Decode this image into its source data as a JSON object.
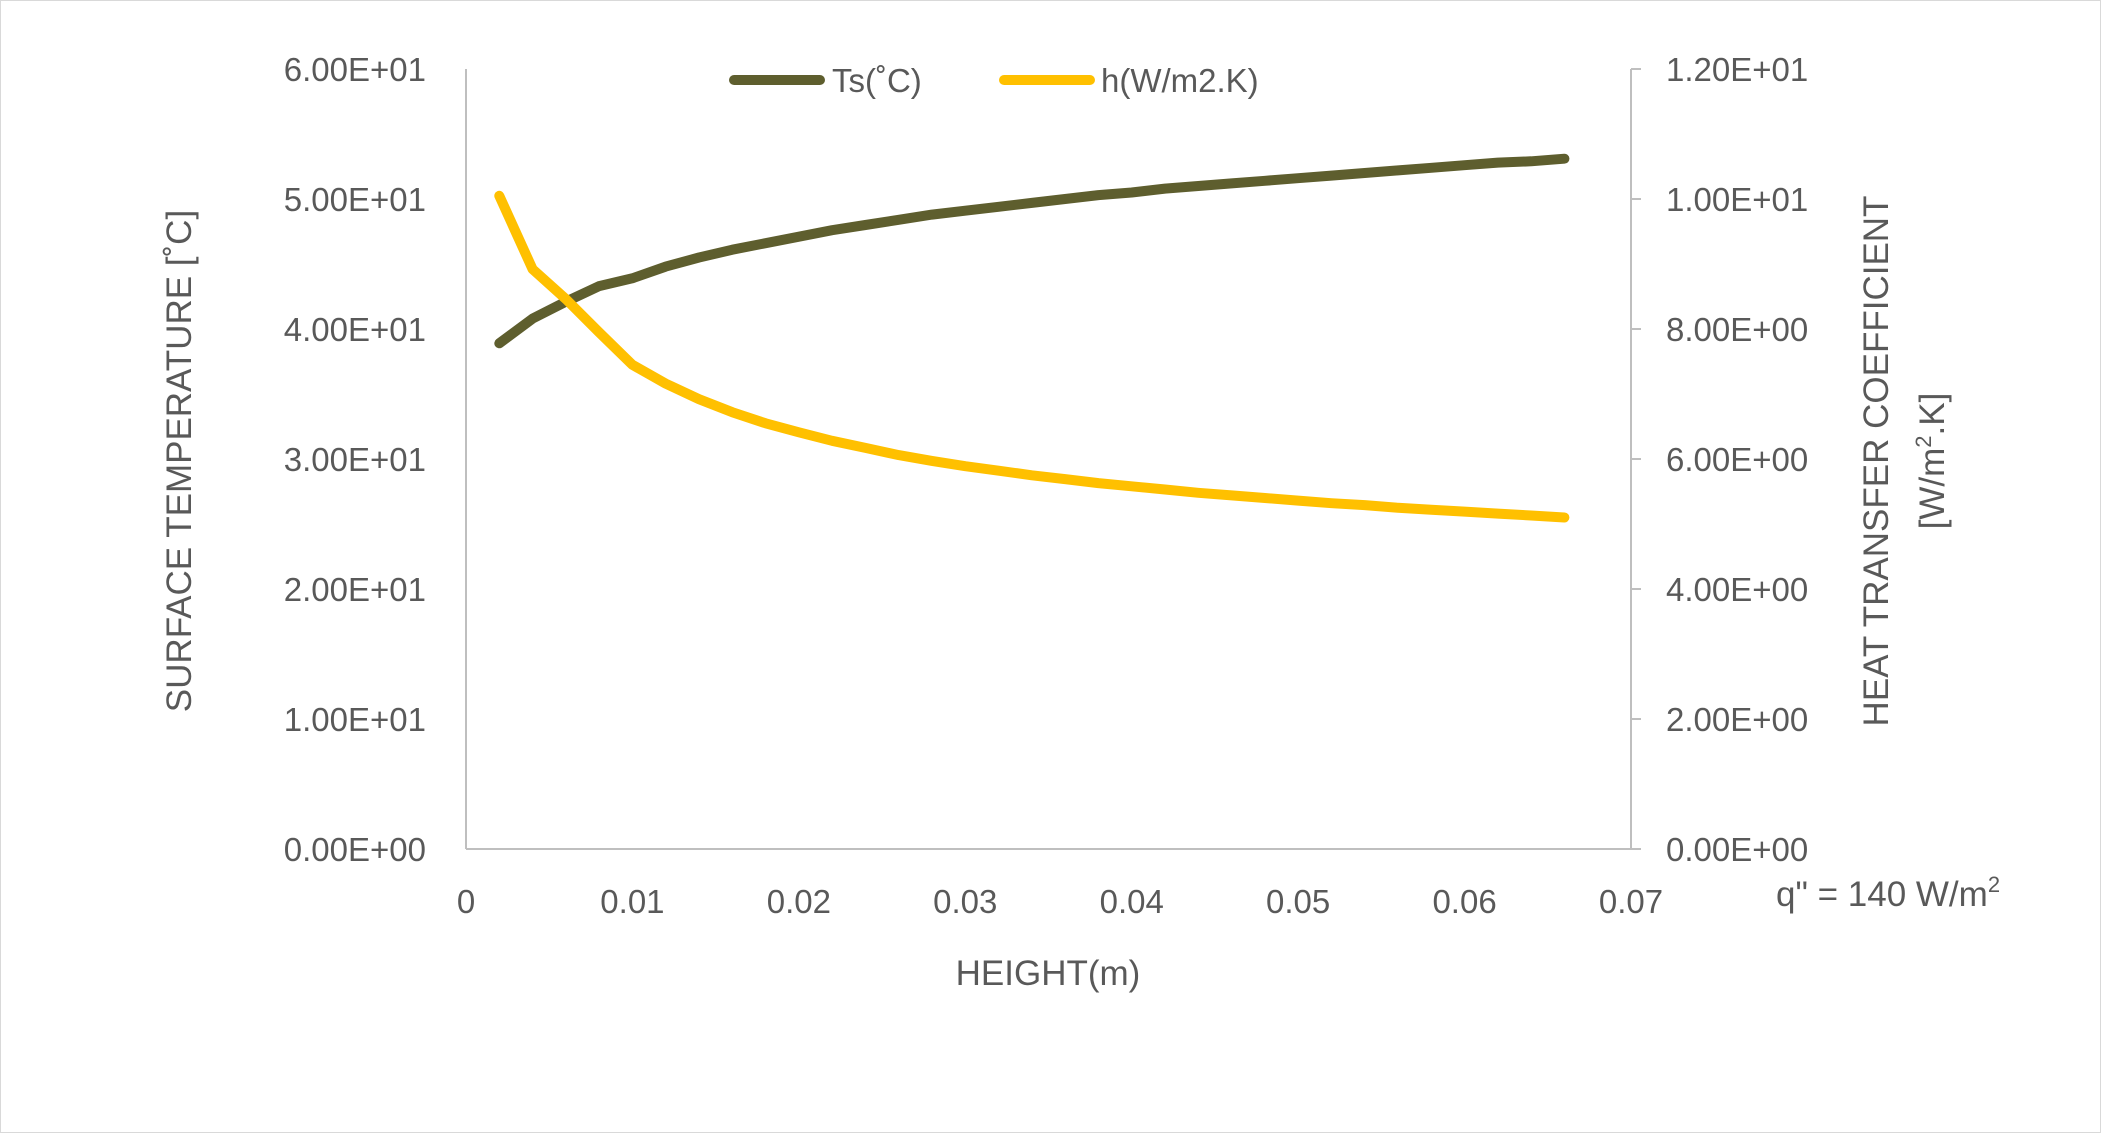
{
  "chart_data": {
    "type": "line",
    "xlabel": "HEIGHT(m)",
    "ylabel_left": "SURFACE TEMPERATURE [˚C]",
    "ylabel_right_line1": "HEAT TRANSFER COEFFICIENT",
    "ylabel_right_line2_parts": [
      "[W/m",
      "2",
      ".K]"
    ],
    "annotation_parts": [
      "q\" = 140 W/m",
      "2"
    ],
    "xlim": [
      0,
      0.07
    ],
    "ylim_left": [
      0,
      60
    ],
    "ylim_right": [
      0,
      12
    ],
    "x_ticks": [
      0,
      0.01,
      0.02,
      0.03,
      0.04,
      0.05,
      0.06,
      0.07
    ],
    "x_tick_labels": [
      "0",
      "0.01",
      "0.02",
      "0.03",
      "0.04",
      "0.05",
      "0.06",
      "0.07"
    ],
    "y_left_ticks": [
      0,
      10,
      20,
      30,
      40,
      50,
      60
    ],
    "y_left_tick_labels": [
      "0.00E+00",
      "1.00E+01",
      "2.00E+01",
      "3.00E+01",
      "4.00E+01",
      "5.00E+01",
      "6.00E+01"
    ],
    "y_right_ticks": [
      0,
      2,
      4,
      6,
      8,
      10,
      12
    ],
    "y_right_tick_labels": [
      "0.00E+00",
      "2.00E+00",
      "4.00E+00",
      "6.00E+00",
      "8.00E+00",
      "1.00E+01",
      "1.20E+01"
    ],
    "legend_position": "top-center",
    "grid": false,
    "series": [
      {
        "name": "Ts(˚C)",
        "axis": "left",
        "color": "#5e5e2e",
        "x": [
          0.002,
          0.004,
          0.006,
          0.008,
          0.01,
          0.012,
          0.014,
          0.016,
          0.018,
          0.02,
          0.022,
          0.024,
          0.026,
          0.028,
          0.03,
          0.032,
          0.034,
          0.036,
          0.038,
          0.04,
          0.042,
          0.044,
          0.046,
          0.048,
          0.05,
          0.052,
          0.054,
          0.056,
          0.058,
          0.06,
          0.062,
          0.064,
          0.066
        ],
        "values": [
          38.9,
          40.8,
          42.1,
          43.3,
          43.9,
          44.8,
          45.5,
          46.1,
          46.6,
          47.1,
          47.6,
          48.0,
          48.4,
          48.8,
          49.1,
          49.4,
          49.7,
          50.0,
          50.3,
          50.5,
          50.8,
          51.0,
          51.2,
          51.4,
          51.6,
          51.8,
          52.0,
          52.2,
          52.4,
          52.6,
          52.8,
          52.9,
          53.1
        ]
      },
      {
        "name": "h(W/m2.K)",
        "axis": "right",
        "color": "#ffc000",
        "x": [
          0.002,
          0.004,
          0.006,
          0.008,
          0.01,
          0.012,
          0.014,
          0.016,
          0.018,
          0.02,
          0.022,
          0.024,
          0.026,
          0.028,
          0.03,
          0.032,
          0.034,
          0.036,
          0.038,
          0.04,
          0.042,
          0.044,
          0.046,
          0.048,
          0.05,
          0.052,
          0.054,
          0.056,
          0.058,
          0.06,
          0.062,
          0.064,
          0.066
        ],
        "values": [
          10.05,
          8.92,
          8.46,
          7.95,
          7.45,
          7.16,
          6.92,
          6.72,
          6.55,
          6.41,
          6.28,
          6.17,
          6.06,
          5.97,
          5.89,
          5.82,
          5.75,
          5.69,
          5.63,
          5.58,
          5.53,
          5.48,
          5.44,
          5.4,
          5.36,
          5.32,
          5.29,
          5.25,
          5.22,
          5.19,
          5.16,
          5.13,
          5.1
        ]
      }
    ]
  }
}
